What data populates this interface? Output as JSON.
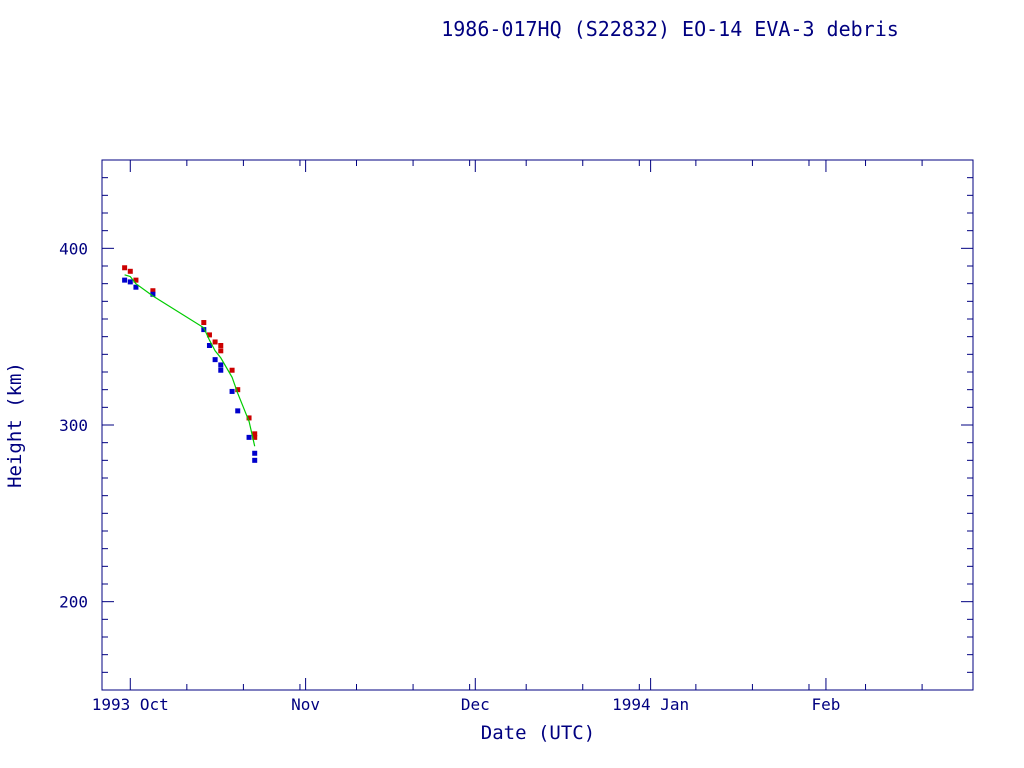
{
  "chart_data": {
    "type": "scatter",
    "title": "1986-017HQ (S22832) EO-14 EVA-3 debris",
    "xlabel": "Date (UTC)",
    "ylabel": "Height (km)",
    "x_axis_type": "date",
    "xlim": [
      "1993-09-26",
      "1994-02-27"
    ],
    "ylim": [
      150,
      450
    ],
    "x_ticks": [
      {
        "date": "1993-10-01",
        "label": "1993 Oct"
      },
      {
        "date": "1993-11-01",
        "label": "Nov"
      },
      {
        "date": "1993-12-01",
        "label": "Dec"
      },
      {
        "date": "1994-01-01",
        "label": "1994 Jan"
      },
      {
        "date": "1994-02-01",
        "label": "Feb"
      }
    ],
    "y_ticks": [
      {
        "value": 200,
        "label": "200"
      },
      {
        "value": 300,
        "label": "300"
      },
      {
        "value": 400,
        "label": "400"
      }
    ],
    "colors": {
      "axes": "#000080",
      "apogee": "#cc0000",
      "perigee": "#0000cc",
      "mean": "#00cc00"
    },
    "series": [
      {
        "role": "apogee",
        "points": [
          {
            "x": "1993-09-30",
            "y": 389
          },
          {
            "x": "1993-10-01",
            "y": 387
          },
          {
            "x": "1993-10-02",
            "y": 382
          },
          {
            "x": "1993-10-05",
            "y": 376
          },
          {
            "x": "1993-10-14",
            "y": 358
          },
          {
            "x": "1993-10-15",
            "y": 351
          },
          {
            "x": "1993-10-16",
            "y": 347
          },
          {
            "x": "1993-10-17",
            "y": 345
          },
          {
            "x": "1993-10-17",
            "y": 342
          },
          {
            "x": "1993-10-19",
            "y": 331
          },
          {
            "x": "1993-10-20",
            "y": 320
          },
          {
            "x": "1993-10-22",
            "y": 304
          },
          {
            "x": "1993-10-23",
            "y": 295
          },
          {
            "x": "1993-10-23",
            "y": 293
          }
        ]
      },
      {
        "role": "perigee",
        "points": [
          {
            "x": "1993-09-30",
            "y": 382
          },
          {
            "x": "1993-10-01",
            "y": 381
          },
          {
            "x": "1993-10-02",
            "y": 378
          },
          {
            "x": "1993-10-05",
            "y": 374
          },
          {
            "x": "1993-10-14",
            "y": 354
          },
          {
            "x": "1993-10-15",
            "y": 345
          },
          {
            "x": "1993-10-16",
            "y": 337
          },
          {
            "x": "1993-10-17",
            "y": 334
          },
          {
            "x": "1993-10-17",
            "y": 331
          },
          {
            "x": "1993-10-19",
            "y": 319
          },
          {
            "x": "1993-10-20",
            "y": 308
          },
          {
            "x": "1993-10-22",
            "y": 293
          },
          {
            "x": "1993-10-23",
            "y": 284
          },
          {
            "x": "1993-10-23",
            "y": 280
          }
        ]
      },
      {
        "role": "mean",
        "line": true,
        "points": [
          {
            "x": "1993-09-30",
            "y": 385
          },
          {
            "x": "1993-10-01",
            "y": 384
          },
          {
            "x": "1993-10-02",
            "y": 380
          },
          {
            "x": "1993-10-05",
            "y": 373
          },
          {
            "x": "1993-10-14",
            "y": 355
          },
          {
            "x": "1993-10-15",
            "y": 348
          },
          {
            "x": "1993-10-16",
            "y": 342
          },
          {
            "x": "1993-10-17",
            "y": 338
          },
          {
            "x": "1993-10-19",
            "y": 327
          },
          {
            "x": "1993-10-20",
            "y": 318
          },
          {
            "x": "1993-10-22",
            "y": 302
          },
          {
            "x": "1993-10-23",
            "y": 288
          }
        ]
      }
    ]
  }
}
